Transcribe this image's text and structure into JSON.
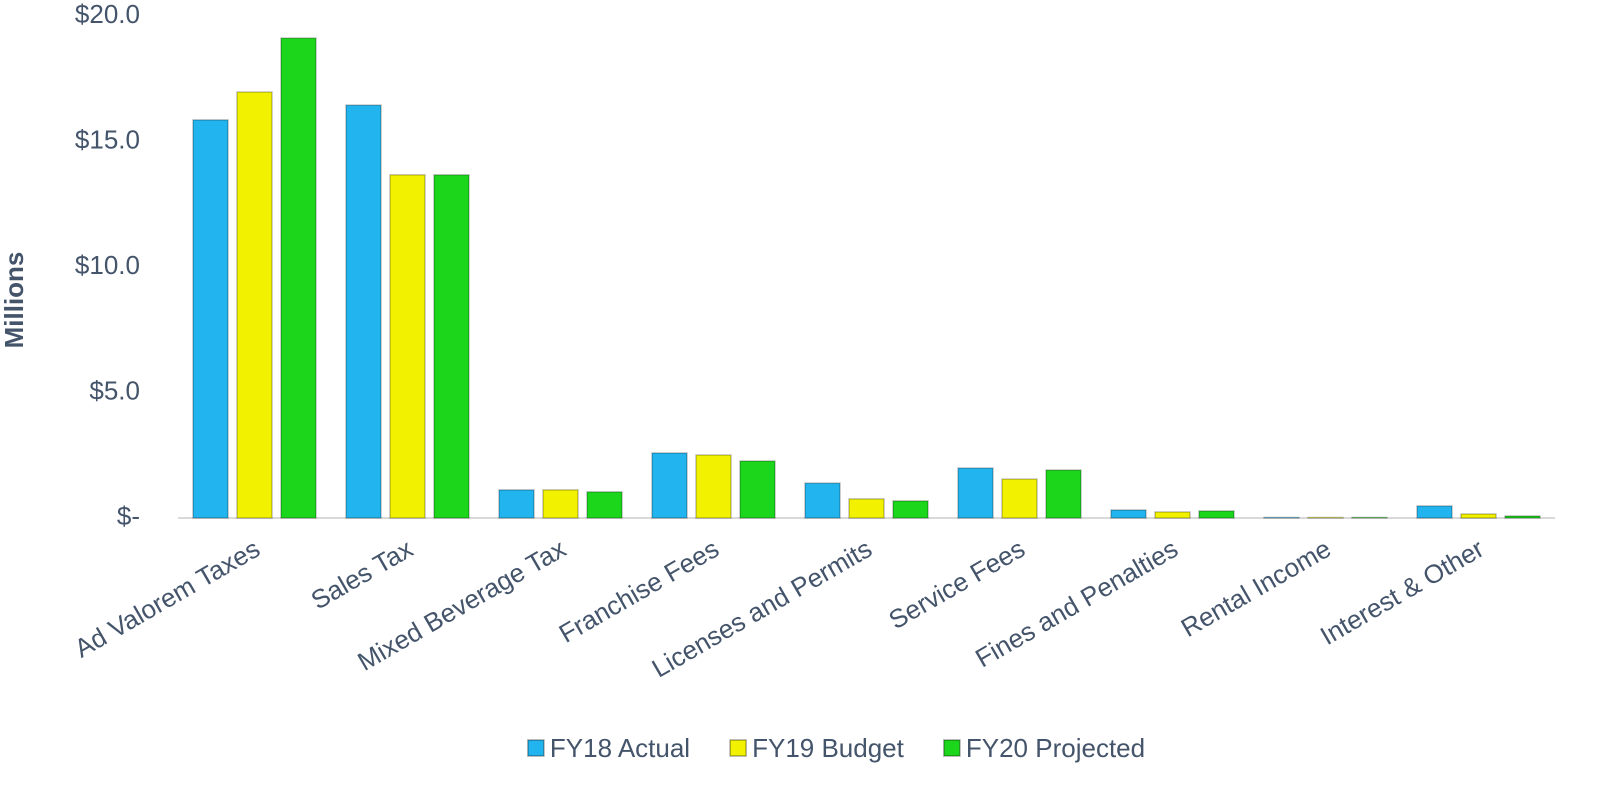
{
  "chart_data": {
    "type": "bar",
    "y_label": "Millions",
    "categories": [
      "Ad Valorem Taxes",
      "Sales Tax",
      "Mixed Beverage Tax",
      "Franchise Fees",
      "Licenses and Permits",
      "Service Fees",
      "Fines and Penalties",
      "Rental Income",
      "Interest & Other"
    ],
    "series": [
      {
        "name": "FY18 Actual",
        "color": "#22b4ee",
        "values": [
          15.86,
          16.45,
          1.12,
          2.59,
          1.39,
          1.99,
          0.32,
          0.02,
          0.48
        ]
      },
      {
        "name": "FY19 Budget",
        "color": "#f2f200",
        "values": [
          16.97,
          13.67,
          1.12,
          2.51,
          0.76,
          1.55,
          0.24,
          0.02,
          0.16
        ]
      },
      {
        "name": "FY20 Projected",
        "color": "#1cd61c",
        "values": [
          19.12,
          13.67,
          1.04,
          2.27,
          0.68,
          1.91,
          0.28,
          0.02,
          0.08
        ]
      }
    ],
    "ylim": [
      0,
      20
    ],
    "yticks": [
      {
        "value": 0,
        "label": "$-"
      },
      {
        "value": 5,
        "label": "$5.0"
      },
      {
        "value": 10,
        "label": "$10.0"
      },
      {
        "value": 15,
        "label": "$15.0"
      },
      {
        "value": 20,
        "label": "$20.0"
      }
    ],
    "grid": false,
    "legend": "bottom"
  }
}
